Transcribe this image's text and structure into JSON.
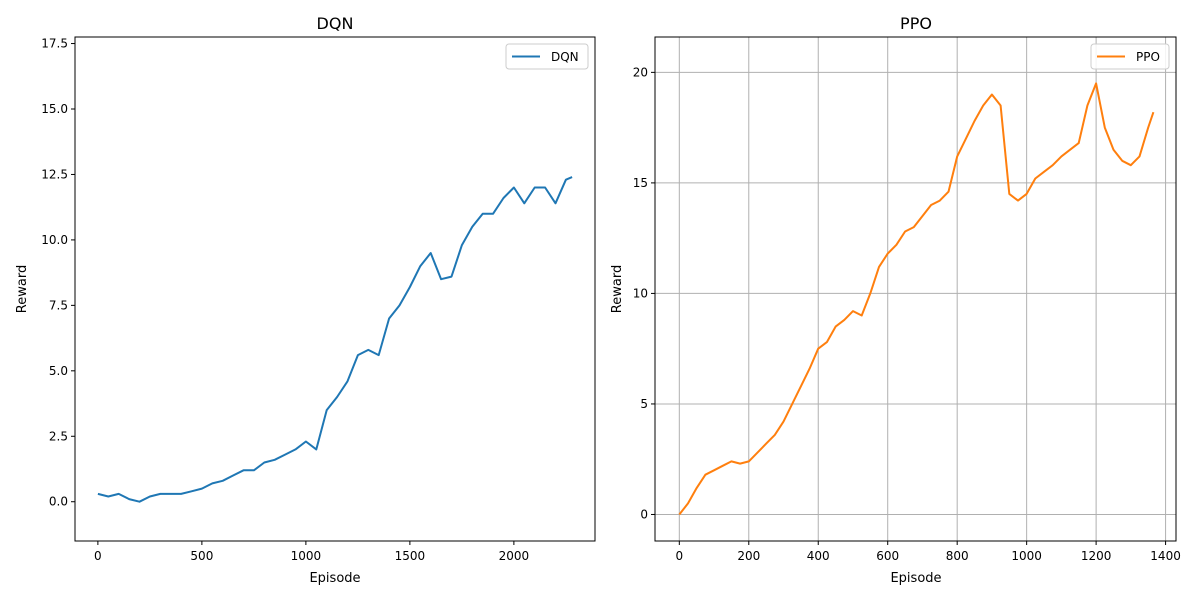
{
  "chart_data": [
    {
      "type": "line",
      "title": "DQN",
      "xlabel": "Episode",
      "ylabel": "Reward",
      "xlim": [
        -110,
        2390
      ],
      "ylim": [
        -1.5,
        17.75
      ],
      "xticks": [
        0,
        500,
        1000,
        1500,
        2000
      ],
      "yticks": [
        0.0,
        2.5,
        5.0,
        7.5,
        10.0,
        12.5,
        15.0,
        17.5
      ],
      "ytick_labels": [
        "0.0",
        "2.5",
        "5.0",
        "7.5",
        "10.0",
        "12.5",
        "15.0",
        "17.5"
      ],
      "grid": false,
      "legend": "top-right",
      "color": "#1f77b4",
      "series": [
        {
          "name": "DQN",
          "x": [
            0,
            50,
            100,
            150,
            200,
            250,
            300,
            350,
            400,
            450,
            500,
            550,
            600,
            650,
            700,
            750,
            800,
            850,
            900,
            950,
            1000,
            1050,
            1100,
            1150,
            1200,
            1250,
            1300,
            1350,
            1400,
            1450,
            1500,
            1550,
            1600,
            1650,
            1700,
            1750,
            1800,
            1850,
            1900,
            1950,
            2000,
            2050,
            2100,
            2150,
            2200,
            2250,
            2280
          ],
          "y": [
            0.3,
            0.2,
            0.3,
            0.1,
            0.0,
            0.2,
            0.3,
            0.3,
            0.3,
            0.4,
            0.5,
            0.7,
            0.8,
            1.0,
            1.2,
            1.2,
            1.5,
            1.6,
            1.8,
            2.0,
            2.3,
            2.0,
            3.5,
            4.0,
            4.6,
            5.6,
            5.8,
            5.6,
            7.0,
            7.5,
            8.2,
            9.0,
            9.5,
            8.5,
            8.6,
            9.8,
            10.5,
            11.0,
            11.0,
            11.6,
            12.0,
            11.4,
            12.0,
            12.0,
            11.4,
            12.3,
            12.4
          ]
        }
      ]
    },
    {
      "type": "line",
      "title": "PPO",
      "xlabel": "Episode",
      "ylabel": "Reward",
      "xlim": [
        -70,
        1430
      ],
      "ylim": [
        -1.2,
        21.6
      ],
      "xticks": [
        0,
        200,
        400,
        600,
        800,
        1000,
        1200,
        1400
      ],
      "yticks": [
        0,
        5,
        10,
        15,
        20
      ],
      "ytick_labels": [
        "0",
        "5",
        "10",
        "15",
        "20"
      ],
      "grid": true,
      "legend": "top-right",
      "color": "#ff7f0e",
      "series": [
        {
          "name": "PPO",
          "x": [
            0,
            25,
            50,
            75,
            100,
            125,
            150,
            175,
            200,
            225,
            250,
            275,
            300,
            325,
            350,
            375,
            400,
            425,
            450,
            475,
            500,
            525,
            550,
            575,
            600,
            625,
            650,
            675,
            700,
            725,
            750,
            775,
            800,
            825,
            850,
            875,
            900,
            925,
            950,
            975,
            1000,
            1025,
            1050,
            1075,
            1100,
            1125,
            1150,
            1175,
            1200,
            1225,
            1250,
            1275,
            1300,
            1325,
            1350,
            1365
          ],
          "y": [
            0.0,
            0.5,
            1.2,
            1.8,
            2.0,
            2.2,
            2.4,
            2.3,
            2.4,
            2.8,
            3.2,
            3.6,
            4.2,
            5.0,
            5.8,
            6.6,
            7.5,
            7.8,
            8.5,
            8.8,
            9.2,
            9.0,
            10.0,
            11.2,
            11.8,
            12.2,
            12.8,
            13.0,
            13.5,
            14.0,
            14.2,
            14.6,
            16.2,
            17.0,
            17.8,
            18.5,
            19.0,
            18.5,
            14.5,
            14.2,
            14.5,
            15.2,
            15.5,
            15.8,
            16.2,
            16.5,
            16.8,
            18.5,
            19.5,
            17.5,
            16.5,
            16.0,
            15.8,
            16.2,
            17.5,
            18.2
          ]
        }
      ]
    }
  ]
}
